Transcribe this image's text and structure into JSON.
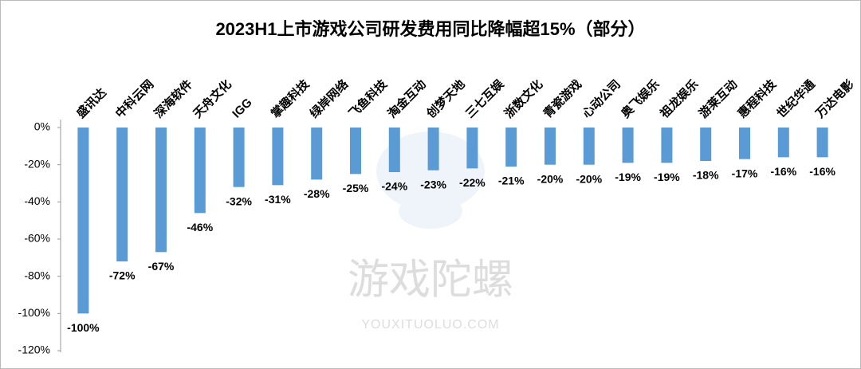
{
  "chart_data": {
    "type": "bar",
    "title": "2023H1上市游戏公司研发费用同比降幅超15%（部分）",
    "categories": [
      "盛讯达",
      "中科云网",
      "深海软件",
      "天舟文化",
      "IGG",
      "掌趣科技",
      "绿岸网络",
      "飞鱼科技",
      "淘金互动",
      "创梦天地",
      "三七互娱",
      "浙数文化",
      "青瓷游戏",
      "心动公司",
      "奥飞娱乐",
      "祖龙娱乐",
      "游莱互动",
      "惠程科技",
      "世纪华通",
      "万达电影"
    ],
    "values": [
      -100,
      -72,
      -67,
      -46,
      -32,
      -31,
      -28,
      -25,
      -24,
      -23,
      -22,
      -21,
      -20,
      -20,
      -19,
      -19,
      -18,
      -17,
      -16,
      -16
    ],
    "value_labels": [
      "-100%",
      "-72%",
      "-67%",
      "-46%",
      "-32%",
      "-31%",
      "-28%",
      "-25%",
      "-24%",
      "-23%",
      "-22%",
      "-21%",
      "-20%",
      "-20%",
      "-19%",
      "-19%",
      "-18%",
      "-17%",
      "-16%",
      "-16%"
    ],
    "color": "#5b9bd5",
    "ylim": [
      -120,
      0
    ],
    "yticks": [
      {
        "value": 0,
        "label": "0%"
      },
      {
        "value": -20,
        "label": "-20%"
      },
      {
        "value": -40,
        "label": "-40%"
      },
      {
        "value": -60,
        "label": "-60%"
      },
      {
        "value": -80,
        "label": "-80%"
      },
      {
        "value": -100,
        "label": "-100%"
      },
      {
        "value": -120,
        "label": "-120%"
      }
    ],
    "grid": false,
    "watermark": {
      "name": "游戏陀螺",
      "url": "YOUXITUOLUO.COM"
    }
  }
}
